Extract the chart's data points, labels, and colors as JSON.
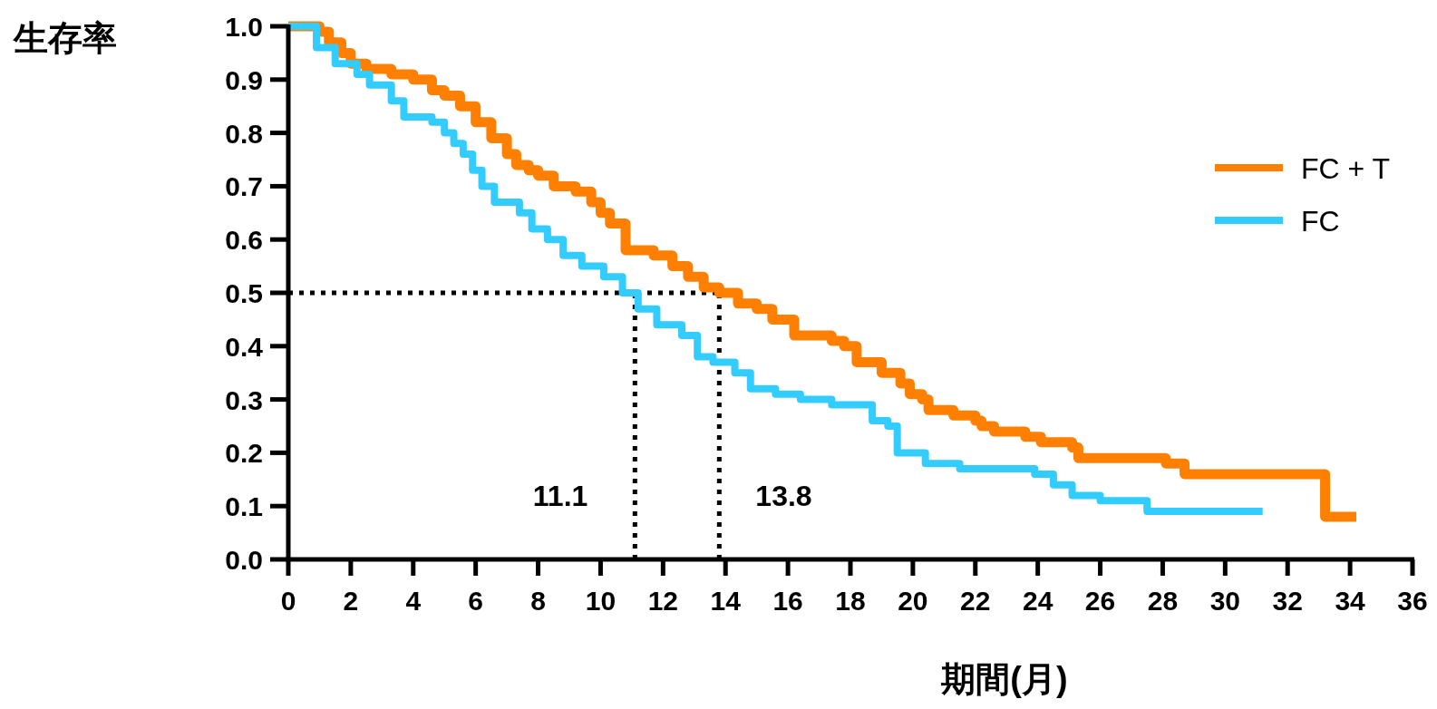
{
  "chart_data": {
    "type": "step",
    "xlabel": "期間(月)",
    "ylabel": "生存率",
    "series": [
      {
        "name": "FC + T",
        "color": "#ff8000",
        "x": [
          0,
          1.0,
          1.3,
          1.7,
          2.0,
          2.5,
          3.3,
          4.0,
          4.6,
          5.0,
          5.5,
          6.0,
          6.5,
          7.0,
          7.3,
          7.7,
          8.0,
          8.5,
          9.2,
          9.7,
          10.0,
          10.3,
          10.8,
          11.7,
          12.3,
          12.8,
          13.3,
          13.8,
          14.4,
          15.0,
          15.5,
          16.2,
          17.4,
          17.8,
          18.2,
          19.0,
          19.6,
          19.9,
          20.3,
          20.5,
          21.3,
          22.0,
          22.2,
          22.6,
          23.6,
          24.1,
          25.1,
          25.3,
          28.1,
          28.7,
          33.2,
          34.2
        ],
        "values": [
          1.0,
          0.99,
          0.97,
          0.95,
          0.93,
          0.92,
          0.91,
          0.9,
          0.88,
          0.87,
          0.85,
          0.82,
          0.79,
          0.76,
          0.74,
          0.73,
          0.72,
          0.7,
          0.69,
          0.67,
          0.65,
          0.63,
          0.58,
          0.57,
          0.55,
          0.53,
          0.51,
          0.5,
          0.48,
          0.47,
          0.45,
          0.42,
          0.41,
          0.4,
          0.37,
          0.35,
          0.33,
          0.31,
          0.3,
          0.28,
          0.27,
          0.26,
          0.25,
          0.24,
          0.23,
          0.22,
          0.21,
          0.19,
          0.18,
          0.16,
          0.08,
          0.08
        ]
      },
      {
        "name": "FC",
        "color": "#33ccff",
        "x": [
          0,
          0.8,
          0.9,
          1.5,
          2.2,
          2.6,
          3.3,
          3.7,
          4.6,
          5.0,
          5.3,
          5.6,
          5.9,
          6.2,
          6.6,
          7.4,
          7.8,
          8.3,
          8.8,
          9.4,
          10.1,
          10.7,
          11.2,
          11.8,
          12.6,
          13.1,
          13.6,
          14.3,
          14.8,
          15.0,
          15.6,
          16.4,
          17.4,
          18.7,
          19.2,
          19.5,
          20.4,
          21.5,
          23.9,
          24.5,
          25.1,
          26.0,
          27.5,
          31.2
        ],
        "values": [
          1.0,
          1.0,
          0.96,
          0.93,
          0.91,
          0.89,
          0.86,
          0.83,
          0.82,
          0.8,
          0.78,
          0.76,
          0.73,
          0.7,
          0.67,
          0.65,
          0.62,
          0.6,
          0.57,
          0.55,
          0.53,
          0.5,
          0.47,
          0.44,
          0.42,
          0.38,
          0.37,
          0.35,
          0.32,
          0.32,
          0.31,
          0.3,
          0.29,
          0.26,
          0.25,
          0.2,
          0.18,
          0.17,
          0.16,
          0.14,
          0.12,
          0.11,
          0.09,
          0.09
        ]
      }
    ],
    "xlim": [
      0,
      36
    ],
    "ylim": [
      0,
      1
    ],
    "xticks": [
      0,
      2,
      4,
      6,
      8,
      10,
      12,
      14,
      16,
      18,
      20,
      22,
      24,
      26,
      28,
      30,
      32,
      34,
      36
    ],
    "yticks": [
      {
        "value": 0,
        "label": "0.0"
      },
      {
        "value": 0.1,
        "label": "0.1"
      },
      {
        "value": 0.2,
        "label": "0.2"
      },
      {
        "value": 0.3,
        "label": "0.3"
      },
      {
        "value": 0.4,
        "label": "0.4"
      },
      {
        "value": 0.5,
        "label": "0.5"
      },
      {
        "value": 0.6,
        "label": "0.6"
      },
      {
        "value": 0.7,
        "label": "0.7"
      },
      {
        "value": 0.8,
        "label": "0.8"
      },
      {
        "value": 0.9,
        "label": "0.9"
      },
      {
        "value": 1,
        "label": "1.0"
      }
    ],
    "ref_lines": [
      {
        "axis": "y",
        "value": 0.5,
        "line_style": "dotted",
        "color": "#000000"
      },
      {
        "axis": "x",
        "value": 11.1,
        "label": "11.1",
        "line_style": "dotted",
        "color": "#000000"
      },
      {
        "axis": "x",
        "value": 13.8,
        "label": "13.8",
        "line_style": "dotted",
        "color": "#000000"
      }
    ],
    "legend": "top right",
    "grid": false,
    "marker": "none",
    "line_style": "solid"
  }
}
